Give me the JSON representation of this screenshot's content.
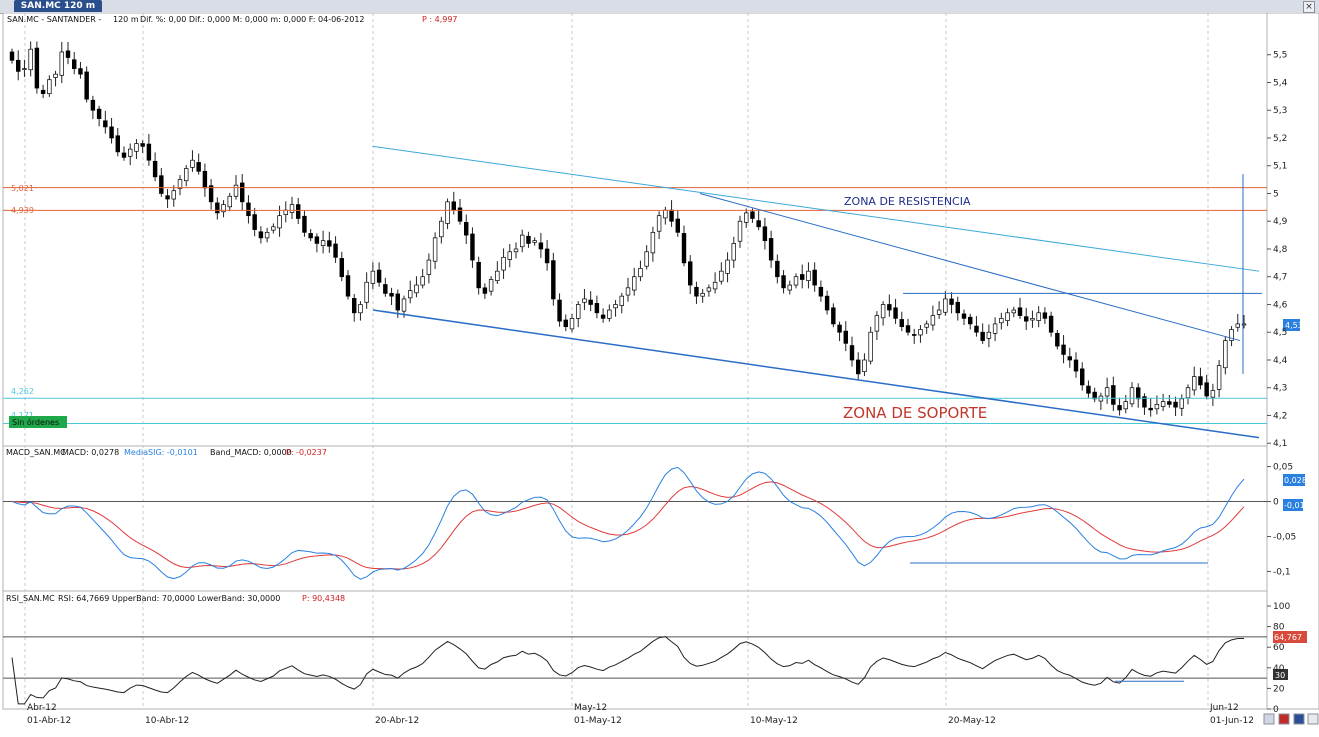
{
  "tab": {
    "title": "SAN.MC 120 m"
  },
  "price_header": {
    "symbol": "SAN.MC - SANTANDER -",
    "interval": "120 m",
    "stats": "Dif. %: 0,00 Dif.: 0,000 M: 0,000 m: 0,000 F: 04-06-2012",
    "last": "P : 4,997"
  },
  "macd_header": {
    "name": "MACD_SAN.MC",
    "macd": "MACD: 0,0278",
    "signal": "MediaSIG: -0,0101",
    "band": "Band_MACD: 0,0000",
    "p": "P: -0,0237"
  },
  "rsi_header": {
    "name": "RSI_SAN.MC",
    "values": "RSI: 64,7669 UpperBand: 70,0000 LowerBand: 30,0000",
    "p": "P: 90,4348"
  },
  "annotations": {
    "resistance": "ZONA DE RESISTENCIA",
    "support": "ZONA DE SOPORTE",
    "no_orders": "Sin órdenes",
    "level_5021": "5,021",
    "level_4939": "4,939",
    "level_4262": "4,262",
    "level_4171": "4,171"
  },
  "badges": {
    "price_last": "4,53",
    "macd_a": "0,028",
    "macd_b": "-0,01",
    "rsi": "64,767",
    "rsi_low": "30"
  },
  "colors": {
    "bull": "#ffffff",
    "bear": "#000000",
    "wick": "#222222",
    "resistance": "#e0643c",
    "support": "#4cc9d9",
    "trend": "#2a6cc7",
    "macd": "#2a80e0",
    "signal": "#e03a3a",
    "label_red": "#c0382b",
    "label_blue": "#1d2f8a"
  },
  "chart_data": [
    {
      "type": "candlestick",
      "title": "SAN.MC - SANTANDER - 120 m",
      "x_ticks": [
        "01-Abr-12",
        "10-Abr-12",
        "20-Abr-12",
        "01-May-12",
        "10-May-12",
        "20-May-12",
        "01-Jun-12"
      ],
      "x_top_labels": [
        "Abr-12",
        "May-12",
        "Jun-12"
      ],
      "y_ticks": [
        "5,5",
        "5,4",
        "5,3",
        "5,2",
        "5,1",
        "5",
        "4,9",
        "4,8",
        "4,7",
        "4,6",
        "4,5",
        "4,4",
        "4,3",
        "4,2",
        "4,1"
      ],
      "ylim": [
        4.09,
        5.6
      ],
      "closes": [
        5.48,
        5.44,
        5.45,
        5.52,
        5.38,
        5.36,
        5.41,
        5.43,
        5.51,
        5.49,
        5.45,
        5.43,
        5.34,
        5.3,
        5.27,
        5.24,
        5.2,
        5.15,
        5.13,
        5.16,
        5.18,
        5.17,
        5.12,
        5.06,
        5.0,
        4.98,
        5.01,
        5.05,
        5.09,
        5.12,
        5.08,
        5.02,
        4.97,
        4.93,
        4.96,
        4.99,
        5.03,
        4.97,
        4.92,
        4.87,
        4.84,
        4.86,
        4.88,
        4.92,
        4.94,
        4.96,
        4.91,
        4.86,
        4.84,
        4.82,
        4.83,
        4.81,
        4.77,
        4.7,
        4.63,
        4.57,
        4.6,
        4.68,
        4.72,
        4.68,
        4.64,
        4.63,
        4.58,
        4.62,
        4.65,
        4.67,
        4.7,
        4.76,
        4.84,
        4.9,
        4.97,
        4.94,
        4.9,
        4.85,
        4.76,
        4.66,
        4.64,
        4.69,
        4.72,
        4.77,
        4.79,
        4.8,
        4.85,
        4.82,
        4.83,
        4.8,
        4.75,
        4.62,
        4.54,
        4.52,
        4.55,
        4.6,
        4.62,
        4.6,
        4.57,
        4.55,
        4.58,
        4.6,
        4.63,
        4.66,
        4.7,
        4.73,
        4.79,
        4.86,
        4.92,
        4.94,
        4.9,
        4.86,
        4.75,
        4.67,
        4.63,
        4.64,
        4.66,
        4.68,
        4.72,
        4.76,
        4.82,
        4.9,
        4.93,
        4.91,
        4.88,
        4.83,
        4.76,
        4.7,
        4.66,
        4.67,
        4.7,
        4.69,
        4.72,
        4.67,
        4.63,
        4.58,
        4.53,
        4.5,
        4.46,
        4.4,
        4.35,
        4.4,
        4.5,
        4.56,
        4.6,
        4.58,
        4.55,
        4.52,
        4.5,
        4.49,
        4.51,
        4.53,
        4.56,
        4.58,
        4.62,
        4.6,
        4.57,
        4.55,
        4.53,
        4.5,
        4.47,
        4.5,
        4.53,
        4.55,
        4.57,
        4.58,
        4.56,
        4.54,
        4.55,
        4.57,
        4.55,
        4.5,
        4.45,
        4.42,
        4.4,
        4.36,
        4.31,
        4.28,
        4.26,
        4.27,
        4.3,
        4.24,
        4.22,
        4.25,
        4.3,
        4.26,
        4.23,
        4.22,
        4.24,
        4.25,
        4.24,
        4.23,
        4.26,
        4.3,
        4.34,
        4.31,
        4.27,
        4.29,
        4.38,
        4.47,
        4.51,
        4.53,
        4.53
      ]
    },
    {
      "type": "line",
      "title": "MACD_SAN.MC",
      "y_ticks": [
        "0,05",
        "0",
        "-0,05",
        "-0,1"
      ],
      "ylim": [
        -0.128,
        0.058
      ]
    },
    {
      "type": "line",
      "title": "RSI_SAN.MC",
      "y_ticks": [
        "100",
        "80",
        "60",
        "40",
        "20",
        "0"
      ],
      "ylim": [
        0,
        100
      ],
      "upper_band": 70,
      "lower_band": 30
    }
  ]
}
